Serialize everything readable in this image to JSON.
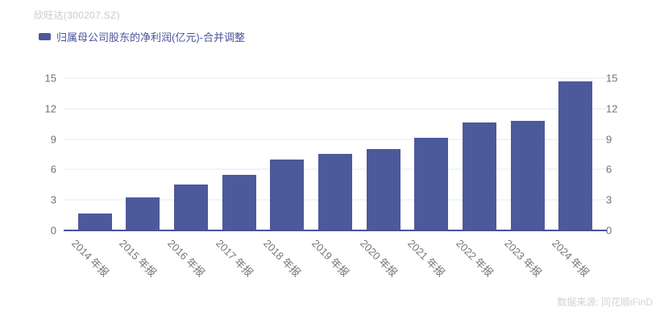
{
  "header": {
    "title": "欣旺达(300207.SZ)"
  },
  "legend": {
    "label": "归属母公司股东的净利润(亿元)-合并调整"
  },
  "footer": {
    "source": "数据来源: 同花顺iFinD"
  },
  "colors": {
    "bar": "#4C599B",
    "legend_text": "#4A549C",
    "axis_line": "#47529A",
    "gridline": "#E3E8F5",
    "y_tick_label": "#70707A",
    "x_tick_label": "#76767E",
    "title": "#C9CAD2",
    "source": "#CFD2DA",
    "background": "#FFFFFF"
  },
  "chart_data": {
    "type": "bar",
    "title": "欣旺达(300207.SZ)",
    "series_name": "归属母公司股东的净利润(亿元)-合并调整",
    "categories": [
      "2014 年报",
      "2015 年报",
      "2016 年报",
      "2017 年报",
      "2018 年报",
      "2019 年报",
      "2020 年报",
      "2021 年报",
      "2022 年报",
      "2023 年报",
      "2024 年报"
    ],
    "values": [
      1.7,
      3.24,
      4.5,
      5.44,
      7.01,
      7.51,
      8.02,
      9.16,
      10.64,
      10.76,
      14.68
    ],
    "xlabel": "",
    "ylabel": "",
    "ylim": [
      0,
      15
    ],
    "yticks": [
      0,
      3,
      6,
      9,
      12,
      15
    ],
    "grid": true,
    "dual_y_axis": true,
    "legend_position": "top-left",
    "x_label_rotation_deg": 45,
    "bar_color": "#4C599B"
  }
}
